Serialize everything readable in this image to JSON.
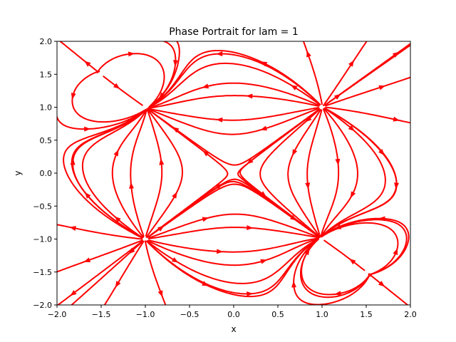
{
  "chart_data": {
    "type": "streamplot",
    "title": "Phase Portrait for lam = 1",
    "xlabel": "x",
    "ylabel": "y",
    "xlim": [
      -2,
      2
    ],
    "ylim": [
      -2,
      2
    ],
    "xticks": [
      -2.0,
      -1.5,
      -1.0,
      -0.5,
      0.0,
      0.5,
      1.0,
      1.5,
      2.0
    ],
    "xtick_labels": [
      "−2.0",
      "−1.5",
      "−1.0",
      "−0.5",
      "0.0",
      "0.5",
      "1.0",
      "1.5",
      "2.0"
    ],
    "yticks": [
      -2.0,
      -1.5,
      -1.0,
      -0.5,
      0.0,
      0.5,
      1.0,
      1.5,
      2.0
    ],
    "ytick_labels": [
      "−2.0",
      "−1.5",
      "−1.0",
      "−0.5",
      "0.0",
      "0.5",
      "1.0",
      "1.5",
      "2.0"
    ],
    "grid": false,
    "stream_color": "#ff0000",
    "lam": 1,
    "arrow_direction_note": "arrows point away from (1,1), (-1,-1), (-1.5,1.5), (1.5,-1.5); toward (-1,1) and (1,-1)"
  }
}
